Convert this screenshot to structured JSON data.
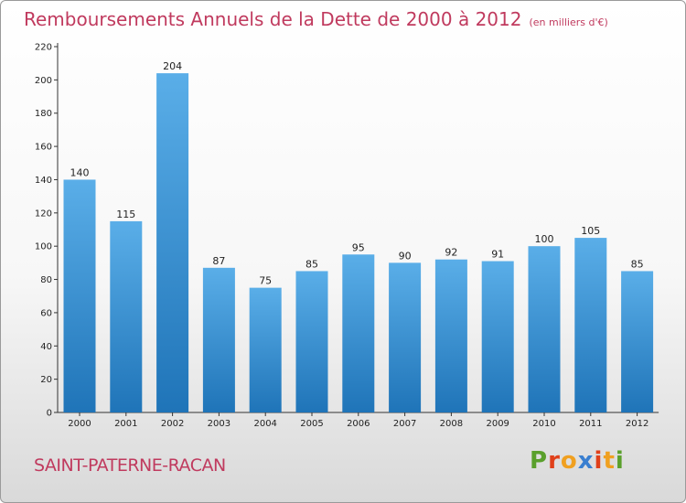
{
  "title": "Remboursements Annuels de la Dette de 2000 à 2012",
  "unit": "(en milliers d'€)",
  "town": "SAINT-PATERNE-RACAN",
  "logo": {
    "letters": [
      "P",
      "r",
      "o",
      "x",
      "i",
      "t",
      "i"
    ],
    "colors": [
      "#5aa02c",
      "#e0401a",
      "#f0a020",
      "#3a7fd0",
      "#e0401a",
      "#f0a020",
      "#5aa02c"
    ]
  },
  "colors": {
    "bar_top": "#5aaee8",
    "bar_bottom": "#1f74b8",
    "title": "#c03a5e"
  },
  "chart_data": {
    "type": "bar",
    "title": "Remboursements Annuels de la Dette de 2000 à 2012",
    "subtitle": "(en milliers d'€)",
    "categories": [
      "2000",
      "2001",
      "2002",
      "2003",
      "2004",
      "2005",
      "2006",
      "2007",
      "2008",
      "2009",
      "2010",
      "2011",
      "2012"
    ],
    "values": [
      140,
      115,
      204,
      87,
      75,
      85,
      95,
      90,
      92,
      91,
      100,
      105,
      85
    ],
    "ylim": [
      0,
      220
    ],
    "yticks": [
      0,
      20,
      40,
      60,
      80,
      100,
      120,
      140,
      160,
      180,
      200,
      220
    ],
    "grid": false,
    "legend": "none"
  }
}
